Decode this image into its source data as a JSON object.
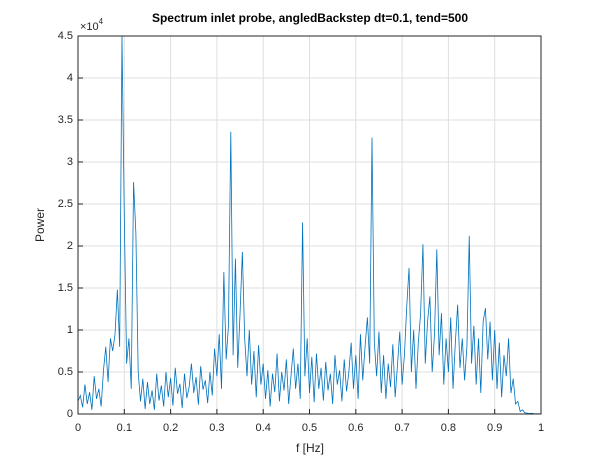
{
  "chart_data": {
    "type": "line",
    "title": "Spectrum inlet probe, angledBackstep dt=0.1, tend=500",
    "x_label": "f [Hz]",
    "y_label": "Power",
    "y_exponent_base": "×10",
    "y_exponent_power": "4",
    "color": "#0072bd",
    "grid": true,
    "xlim": [
      0,
      1
    ],
    "ylim": [
      0,
      45000
    ],
    "xticks": [
      0,
      0.1,
      0.2,
      0.3,
      0.4,
      0.5,
      0.6,
      0.7,
      0.8,
      0.9,
      1
    ],
    "yticks": [
      0,
      {
        "value": 5000,
        "label": "0.5"
      },
      {
        "value": 10000,
        "label": "1"
      },
      {
        "value": 15000,
        "label": "1.5"
      },
      {
        "value": 20000,
        "label": "2"
      },
      {
        "value": 25000,
        "label": "2.5"
      },
      {
        "value": 30000,
        "label": "3"
      },
      {
        "value": 35000,
        "label": "3.5"
      },
      {
        "value": 40000,
        "label": "4"
      },
      {
        "value": 45000,
        "label": "4.5"
      }
    ],
    "x": [
      0,
      0.005,
      0.01,
      0.015,
      0.02,
      0.025,
      0.03,
      0.035,
      0.04,
      0.045,
      0.05,
      0.055,
      0.06,
      0.065,
      0.07,
      0.075,
      0.08,
      0.085,
      0.09,
      0.095,
      0.1,
      0.105,
      0.11,
      0.115,
      0.12,
      0.125,
      0.13,
      0.135,
      0.14,
      0.145,
      0.15,
      0.155,
      0.16,
      0.165,
      0.17,
      0.175,
      0.18,
      0.185,
      0.19,
      0.195,
      0.2,
      0.205,
      0.21,
      0.215,
      0.22,
      0.225,
      0.23,
      0.235,
      0.24,
      0.245,
      0.25,
      0.255,
      0.26,
      0.265,
      0.27,
      0.275,
      0.28,
      0.285,
      0.29,
      0.295,
      0.3,
      0.305,
      0.31,
      0.315,
      0.32,
      0.325,
      0.33,
      0.335,
      0.34,
      0.345,
      0.35,
      0.355,
      0.36,
      0.365,
      0.37,
      0.375,
      0.38,
      0.385,
      0.39,
      0.395,
      0.4,
      0.405,
      0.41,
      0.415,
      0.42,
      0.425,
      0.43,
      0.435,
      0.44,
      0.445,
      0.45,
      0.455,
      0.46,
      0.465,
      0.47,
      0.475,
      0.48,
      0.485,
      0.49,
      0.495,
      0.5,
      0.505,
      0.51,
      0.515,
      0.52,
      0.525,
      0.53,
      0.535,
      0.54,
      0.545,
      0.55,
      0.555,
      0.56,
      0.565,
      0.57,
      0.575,
      0.58,
      0.585,
      0.59,
      0.595,
      0.6,
      0.605,
      0.61,
      0.615,
      0.62,
      0.625,
      0.63,
      0.635,
      0.64,
      0.645,
      0.65,
      0.655,
      0.66,
      0.665,
      0.67,
      0.675,
      0.68,
      0.685,
      0.69,
      0.695,
      0.7,
      0.705,
      0.71,
      0.715,
      0.72,
      0.725,
      0.73,
      0.735,
      0.74,
      0.745,
      0.75,
      0.755,
      0.76,
      0.765,
      0.77,
      0.775,
      0.78,
      0.785,
      0.79,
      0.795,
      0.8,
      0.805,
      0.81,
      0.815,
      0.82,
      0.825,
      0.83,
      0.835,
      0.84,
      0.845,
      0.85,
      0.855,
      0.86,
      0.865,
      0.87,
      0.875,
      0.88,
      0.885,
      0.89,
      0.895,
      0.9,
      0.905,
      0.91,
      0.915,
      0.92,
      0.925,
      0.93,
      0.935,
      0.94,
      0.945,
      0.95,
      0.955,
      0.96,
      0.965,
      0.97,
      0.975,
      0.98,
      0.985,
      0.99,
      0.995,
      1
    ],
    "values": [
      1500,
      2200,
      800,
      3500,
      1200,
      2600,
      500,
      4500,
      1800,
      3000,
      900,
      5200,
      8000,
      3800,
      9000,
      7500,
      9500,
      14800,
      8000,
      45000,
      23500,
      6000,
      9000,
      3000,
      27600,
      21500,
      5000,
      1500,
      4200,
      600,
      3800,
      1200,
      2800,
      500,
      4800,
      1600,
      3400,
      900,
      5000,
      2000,
      4300,
      1000,
      5500,
      2400,
      3600,
      700,
      4800,
      1900,
      3200,
      6000,
      2500,
      4400,
      1100,
      5700,
      2900,
      4000,
      1300,
      5000,
      2200,
      7800,
      4500,
      9500,
      3000,
      16900,
      6500,
      10500,
      33600,
      7000,
      18500,
      5500,
      12000,
      19300,
      9000,
      4500,
      10000,
      3500,
      7500,
      2000,
      8200,
      3500,
      6000,
      1800,
      5200,
      900,
      4800,
      2600,
      7200,
      1500,
      5000,
      2800,
      6500,
      1200,
      4500,
      7800,
      3000,
      6000,
      1800,
      22800,
      4500,
      9000,
      2500,
      6800,
      1400,
      7200,
      3000,
      5500,
      1600,
      6200,
      2800,
      4800,
      1200,
      7000,
      3500,
      5200,
      1500,
      6500,
      2700,
      5000,
      8500,
      3000,
      7000,
      1800,
      9500,
      4000,
      8000,
      11500,
      6000,
      32900,
      8500,
      4500,
      9800,
      2500,
      7000,
      1800,
      6000,
      3200,
      8300,
      2000,
      5800,
      9800,
      3500,
      7000,
      12800,
      17400,
      5000,
      10000,
      3000,
      8500,
      12000,
      20200,
      6000,
      11000,
      14000,
      5000,
      9500,
      19600,
      7000,
      12000,
      3500,
      9000,
      5000,
      11500,
      3000,
      8500,
      13000,
      5500,
      9000,
      4000,
      8000,
      21200,
      6000,
      10500,
      3500,
      9000,
      2500,
      11000,
      12600,
      6500,
      11000,
      4000,
      10000,
      3000,
      8500,
      2000,
      7000,
      4500,
      9000,
      2500,
      4200,
      1200,
      1500,
      300,
      500,
      150,
      100,
      50,
      80,
      40,
      30,
      20,
      10
    ]
  }
}
